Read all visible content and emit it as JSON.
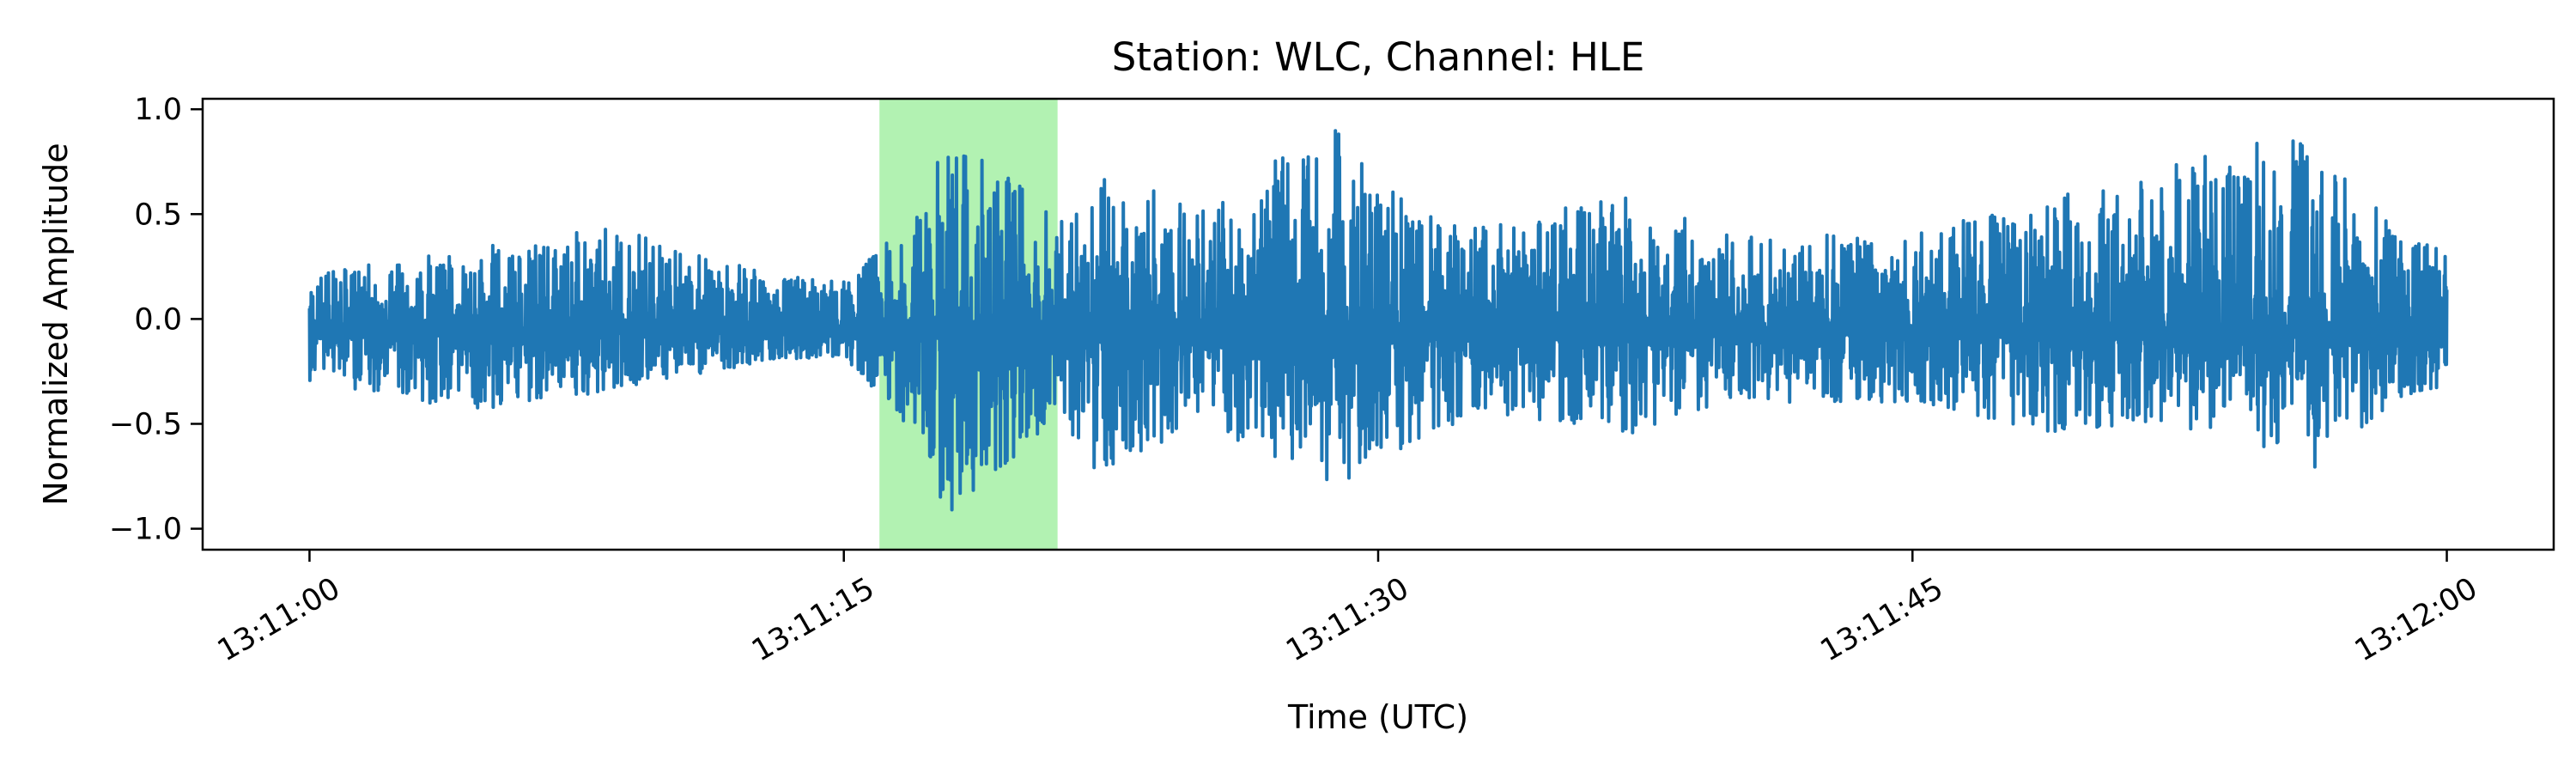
{
  "chart_data": {
    "type": "line",
    "title": "Station: WLC, Channel: HLE",
    "xlabel": "Time (UTC)",
    "ylabel": "Normalized Amplitude",
    "x_start": "13:11:00",
    "x_end": "13:12:00",
    "xlim": [
      "13:10:57",
      "13:12:03"
    ],
    "ylim": [
      -1.1,
      1.05
    ],
    "xticks": [
      "13:11:00",
      "13:11:15",
      "13:11:30",
      "13:11:45",
      "13:12:00"
    ],
    "yticks": [
      1.0,
      0.5,
      0.0,
      -0.5,
      -1.0
    ],
    "ytick_labels": [
      "1.0",
      "0.5",
      "0.0",
      "−0.5",
      "−1.0"
    ],
    "highlight": {
      "start": "13:11:16",
      "end": "13:11:21",
      "color": "#b2f2b2"
    },
    "grid": false,
    "series": [
      {
        "color": "#1f77b4",
        "envelope": [
          {
            "t": "13:11:00",
            "max": 0.22,
            "min": -0.3
          },
          {
            "t": "13:11:05",
            "max": 0.35,
            "min": -0.45
          },
          {
            "t": "13:11:09",
            "max": 0.45,
            "min": -0.32
          },
          {
            "t": "13:11:13",
            "max": 0.2,
            "min": -0.2
          },
          {
            "t": "13:11:15",
            "max": 0.2,
            "min": -0.18
          },
          {
            "t": "13:11:17",
            "max": 0.5,
            "min": -0.55
          },
          {
            "t": "13:11:18",
            "max": 0.9,
            "min": -1.0
          },
          {
            "t": "13:11:21",
            "max": 0.5,
            "min": -0.45
          },
          {
            "t": "13:11:22",
            "max": 0.7,
            "min": -0.75
          },
          {
            "t": "13:11:25",
            "max": 0.55,
            "min": -0.5
          },
          {
            "t": "13:11:27",
            "max": 0.75,
            "min": -0.65
          },
          {
            "t": "13:11:29",
            "max": 0.92,
            "min": -0.8
          },
          {
            "t": "13:11:31",
            "max": 0.5,
            "min": -0.6
          },
          {
            "t": "13:11:33",
            "max": 0.45,
            "min": -0.45
          },
          {
            "t": "13:11:37",
            "max": 0.6,
            "min": -0.55
          },
          {
            "t": "13:11:40",
            "max": 0.4,
            "min": -0.4
          },
          {
            "t": "13:11:45",
            "max": 0.4,
            "min": -0.4
          },
          {
            "t": "13:11:49",
            "max": 0.6,
            "min": -0.55
          },
          {
            "t": "13:11:51",
            "max": 0.65,
            "min": -0.5
          },
          {
            "t": "13:11:54",
            "max": 0.85,
            "min": -0.55
          },
          {
            "t": "13:11:56",
            "max": 0.85,
            "min": -0.75
          },
          {
            "t": "13:11:58",
            "max": 0.55,
            "min": -0.5
          },
          {
            "t": "13:12:00",
            "max": 0.3,
            "min": -0.3
          }
        ]
      }
    ]
  }
}
